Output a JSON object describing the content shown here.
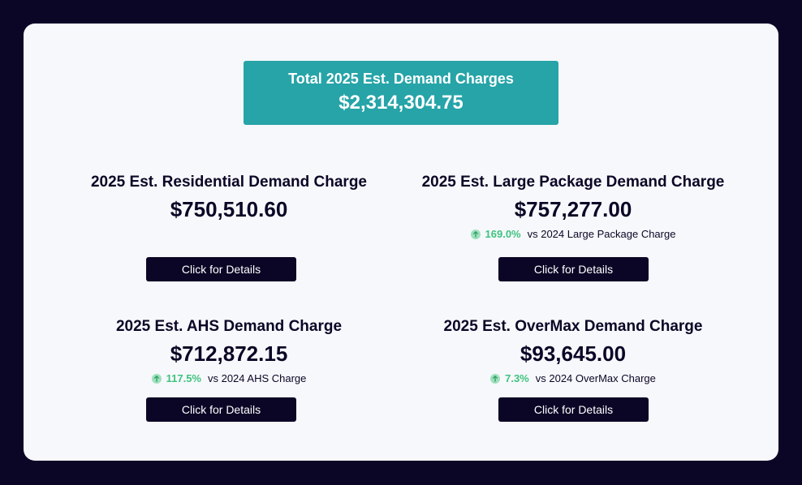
{
  "total": {
    "title": "Total 2025 Est. Demand Charges",
    "value": "$2,314,304.75",
    "color": "#26a4a8"
  },
  "cards": {
    "residential": {
      "title": "2025 Est. Residential Demand Charge",
      "value": "$750,510.60",
      "button_label": "Click for Details"
    },
    "large_package": {
      "title": "2025 Est. Large Package Demand Charge",
      "value": "$757,277.00",
      "change_icon": "arrow-up-icon",
      "change_pct": "169.0%",
      "change_text": "vs 2024 Large Package Charge",
      "button_label": "Click for Details"
    },
    "ahs": {
      "title": "2025 Est. AHS Demand Charge",
      "value": "$712,872.15",
      "change_icon": "arrow-up-icon",
      "change_pct": "117.5%",
      "change_text": "vs 2024 AHS Charge",
      "button_label": "Click for Details"
    },
    "overmax": {
      "title": "2025 Est. OverMax Demand Charge",
      "value": "$93,645.00",
      "change_icon": "arrow-up-icon",
      "change_pct": "7.3%",
      "change_text": "vs 2024 OverMax Charge",
      "button_label": "Click for Details"
    }
  },
  "colors": {
    "frame": "#0b0626",
    "panel": "#f6f8fb",
    "positive": "#3fc37f",
    "button": "#0b0626"
  }
}
